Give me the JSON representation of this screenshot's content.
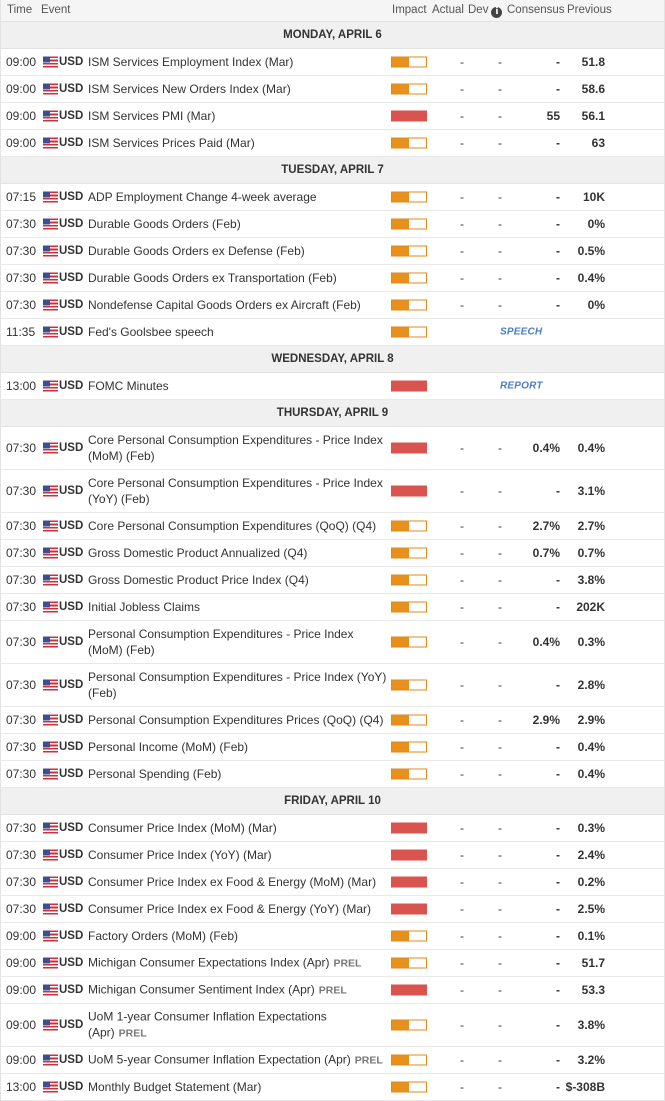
{
  "header": {
    "time": "Time",
    "event": "Event",
    "impact": "Impact",
    "actual": "Actual",
    "dev": "Dev",
    "consensus": "Consensus",
    "previous": "Previous",
    "info_icon": "info-icon"
  },
  "days": [
    {
      "label": "MONDAY, APRIL 6",
      "events": [
        {
          "time": "09:00",
          "currency": "USD",
          "name": "ISM Services Employment Index (Mar)",
          "impact": "medium",
          "actual": "-",
          "dev": "-",
          "consensus": "-",
          "previous": "51.8"
        },
        {
          "time": "09:00",
          "currency": "USD",
          "name": "ISM Services New Orders Index (Mar)",
          "impact": "medium",
          "actual": "-",
          "dev": "-",
          "consensus": "-",
          "previous": "58.6"
        },
        {
          "time": "09:00",
          "currency": "USD",
          "name": "ISM Services PMI (Mar)",
          "impact": "high",
          "actual": "-",
          "dev": "-",
          "consensus": "55",
          "previous": "56.1"
        },
        {
          "time": "09:00",
          "currency": "USD",
          "name": "ISM Services Prices Paid (Mar)",
          "impact": "medium",
          "actual": "-",
          "dev": "-",
          "consensus": "-",
          "previous": "63"
        }
      ]
    },
    {
      "label": "TUESDAY, APRIL 7",
      "events": [
        {
          "time": "07:15",
          "currency": "USD",
          "name": "ADP Employment Change 4-week average",
          "impact": "medium",
          "actual": "-",
          "dev": "-",
          "consensus": "-",
          "previous": "10K"
        },
        {
          "time": "07:30",
          "currency": "USD",
          "name": "Durable Goods Orders (Feb)",
          "impact": "medium",
          "actual": "-",
          "dev": "-",
          "consensus": "-",
          "previous": "0%"
        },
        {
          "time": "07:30",
          "currency": "USD",
          "name": "Durable Goods Orders ex Defense (Feb)",
          "impact": "medium",
          "actual": "-",
          "dev": "-",
          "consensus": "-",
          "previous": "0.5%"
        },
        {
          "time": "07:30",
          "currency": "USD",
          "name": "Durable Goods Orders ex Transportation (Feb)",
          "impact": "medium",
          "actual": "-",
          "dev": "-",
          "consensus": "-",
          "previous": "0.4%"
        },
        {
          "time": "07:30",
          "currency": "USD",
          "name": "Nondefense Capital Goods Orders ex Aircraft (Feb)",
          "impact": "medium",
          "actual": "-",
          "dev": "-",
          "consensus": "-",
          "previous": "0%"
        },
        {
          "time": "11:35",
          "currency": "USD",
          "name": "Fed's Goolsbee speech",
          "impact": "medium",
          "tag": "SPEECH"
        }
      ]
    },
    {
      "label": "WEDNESDAY, APRIL 8",
      "events": [
        {
          "time": "13:00",
          "currency": "USD",
          "name": "FOMC Minutes",
          "impact": "high",
          "tag": "REPORT"
        }
      ]
    },
    {
      "label": "THURSDAY, APRIL 9",
      "events": [
        {
          "time": "07:30",
          "currency": "USD",
          "name": "Core Personal Consumption Expenditures - Price Index (MoM) (Feb)",
          "impact": "high",
          "actual": "-",
          "dev": "-",
          "consensus": "0.4%",
          "previous": "0.4%",
          "tall": true
        },
        {
          "time": "07:30",
          "currency": "USD",
          "name": "Core Personal Consumption Expenditures - Price Index (YoY) (Feb)",
          "impact": "high",
          "actual": "-",
          "dev": "-",
          "consensus": "-",
          "previous": "3.1%",
          "tall": true
        },
        {
          "time": "07:30",
          "currency": "USD",
          "name": "Core Personal Consumption Expenditures (QoQ) (Q4)",
          "impact": "medium",
          "actual": "-",
          "dev": "-",
          "consensus": "2.7%",
          "previous": "2.7%"
        },
        {
          "time": "07:30",
          "currency": "USD",
          "name": "Gross Domestic Product Annualized (Q4)",
          "impact": "medium",
          "actual": "-",
          "dev": "-",
          "consensus": "0.7%",
          "previous": "0.7%"
        },
        {
          "time": "07:30",
          "currency": "USD",
          "name": "Gross Domestic Product Price Index (Q4)",
          "impact": "medium",
          "actual": "-",
          "dev": "-",
          "consensus": "-",
          "previous": "3.8%"
        },
        {
          "time": "07:30",
          "currency": "USD",
          "name": "Initial Jobless Claims",
          "impact": "medium",
          "actual": "-",
          "dev": "-",
          "consensus": "-",
          "previous": "202K"
        },
        {
          "time": "07:30",
          "currency": "USD",
          "name": "Personal Consumption Expenditures - Price Index (MoM) (Feb)",
          "impact": "medium",
          "actual": "-",
          "dev": "-",
          "consensus": "0.4%",
          "previous": "0.3%",
          "tall": true
        },
        {
          "time": "07:30",
          "currency": "USD",
          "name": "Personal Consumption Expenditures - Price Index (YoY) (Feb)",
          "impact": "medium",
          "actual": "-",
          "dev": "-",
          "consensus": "-",
          "previous": "2.8%",
          "tall": true
        },
        {
          "time": "07:30",
          "currency": "USD",
          "name": "Personal Consumption Expenditures Prices (QoQ) (Q4)",
          "impact": "medium",
          "actual": "-",
          "dev": "-",
          "consensus": "2.9%",
          "previous": "2.9%"
        },
        {
          "time": "07:30",
          "currency": "USD",
          "name": "Personal Income (MoM) (Feb)",
          "impact": "medium",
          "actual": "-",
          "dev": "-",
          "consensus": "-",
          "previous": "0.4%"
        },
        {
          "time": "07:30",
          "currency": "USD",
          "name": "Personal Spending (Feb)",
          "impact": "medium",
          "actual": "-",
          "dev": "-",
          "consensus": "-",
          "previous": "0.4%"
        }
      ]
    },
    {
      "label": "FRIDAY, APRIL 10",
      "events": [
        {
          "time": "07:30",
          "currency": "USD",
          "name": "Consumer Price Index (MoM) (Mar)",
          "impact": "high",
          "actual": "-",
          "dev": "-",
          "consensus": "-",
          "previous": "0.3%"
        },
        {
          "time": "07:30",
          "currency": "USD",
          "name": "Consumer Price Index (YoY) (Mar)",
          "impact": "high",
          "actual": "-",
          "dev": "-",
          "consensus": "-",
          "previous": "2.4%"
        },
        {
          "time": "07:30",
          "currency": "USD",
          "name": "Consumer Price Index ex Food & Energy (MoM) (Mar)",
          "impact": "high",
          "actual": "-",
          "dev": "-",
          "consensus": "-",
          "previous": "0.2%"
        },
        {
          "time": "07:30",
          "currency": "USD",
          "name": "Consumer Price Index ex Food & Energy (YoY) (Mar)",
          "impact": "high",
          "actual": "-",
          "dev": "-",
          "consensus": "-",
          "previous": "2.5%"
        },
        {
          "time": "09:00",
          "currency": "USD",
          "name": "Factory Orders (MoM) (Feb)",
          "impact": "medium",
          "actual": "-",
          "dev": "-",
          "consensus": "-",
          "previous": "0.1%"
        },
        {
          "time": "09:00",
          "currency": "USD",
          "name": "Michigan Consumer Expectations Index (Apr)",
          "prel": "PREL",
          "impact": "medium",
          "actual": "-",
          "dev": "-",
          "consensus": "-",
          "previous": "51.7"
        },
        {
          "time": "09:00",
          "currency": "USD",
          "name": "Michigan Consumer Sentiment Index (Apr)",
          "prel": "PREL",
          "impact": "high",
          "actual": "-",
          "dev": "-",
          "consensus": "-",
          "previous": "53.3"
        },
        {
          "time": "09:00",
          "currency": "USD",
          "name": "UoM 1-year Consumer Inflation Expectations (Apr)",
          "prel": "PREL",
          "impact": "medium",
          "actual": "-",
          "dev": "-",
          "consensus": "-",
          "previous": "3.8%",
          "tall": true
        },
        {
          "time": "09:00",
          "currency": "USD",
          "name": "UoM 5-year Consumer Inflation Expectation (Apr)",
          "prel": "PREL",
          "impact": "medium",
          "actual": "-",
          "dev": "-",
          "consensus": "-",
          "previous": "3.2%"
        },
        {
          "time": "13:00",
          "currency": "USD",
          "name": "Monthly Budget Statement (Mar)",
          "impact": "medium",
          "actual": "-",
          "dev": "-",
          "consensus": "-",
          "previous": "$-308B"
        }
      ]
    }
  ],
  "impact_levels": {
    "medium": 0.5,
    "high": 1.0
  },
  "colors": {
    "medium": "#e8901c",
    "high": "#d9534f",
    "tag": "#4a7fc1"
  },
  "flag_icon": "us-flag-icon"
}
